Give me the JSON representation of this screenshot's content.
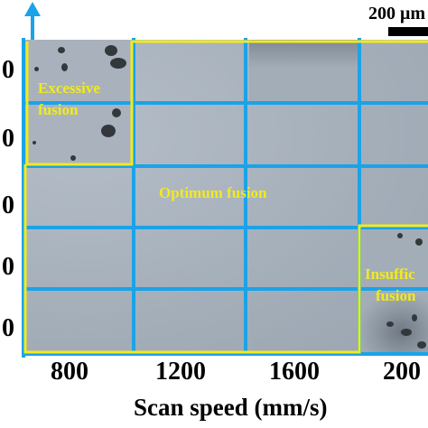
{
  "scale_bar": {
    "label": "200 μm"
  },
  "axis": {
    "y_ticks": [
      "0",
      "0",
      "0",
      "0",
      "0"
    ],
    "x_ticks": [
      "800",
      "1200",
      "1600",
      "200"
    ],
    "x_title": "Scan speed (mm/s)"
  },
  "regions": {
    "excessive": "Excessive fusion",
    "excessive_line1": "Excessive",
    "excessive_line2": "fusion",
    "optimum": "Optimum fusion",
    "insufficient_line1": "Insuffic",
    "insufficient_line2": "fusion"
  },
  "colors": {
    "grid": "#1aa3e8",
    "region_border": "#f2ea1c",
    "micrograph": "#a6b0bb"
  }
}
